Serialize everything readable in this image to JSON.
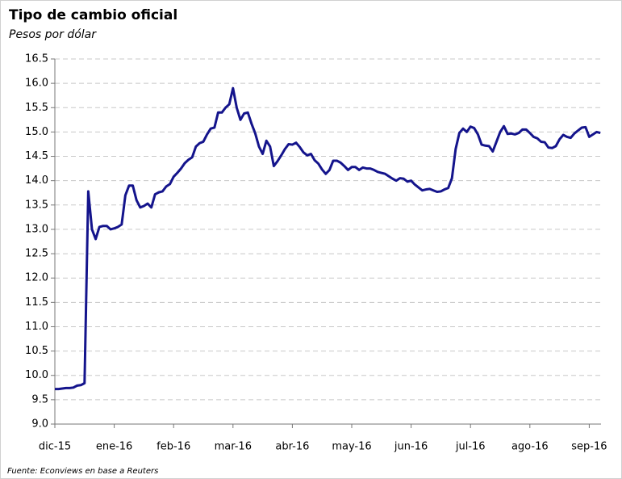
{
  "chart_data": {
    "type": "line",
    "title": "Tipo de cambio oficial",
    "subtitle": "Pesos por dólar",
    "source": "Fuente:  Econviews  en base a Reuters",
    "categories": [
      "dic-15",
      null,
      null,
      null,
      null,
      null,
      null,
      null,
      null,
      null,
      null,
      null,
      null,
      null,
      null,
      null,
      "ene-16",
      null,
      null,
      null,
      null,
      null,
      null,
      null,
      null,
      null,
      null,
      null,
      null,
      null,
      null,
      null,
      "feb-16",
      null,
      null,
      null,
      null,
      null,
      null,
      null,
      null,
      null,
      null,
      null,
      null,
      null,
      null,
      null,
      "mar-16",
      null,
      null,
      null,
      null,
      null,
      null,
      null,
      null,
      null,
      null,
      null,
      null,
      null,
      null,
      null,
      "abr-16",
      null,
      null,
      null,
      null,
      null,
      null,
      null,
      null,
      null,
      null,
      null,
      null,
      null,
      null,
      null,
      "may-16",
      null,
      null,
      null,
      null,
      null,
      null,
      null,
      null,
      null,
      null,
      null,
      null,
      null,
      null,
      null,
      "jun-16",
      null,
      null,
      null,
      null,
      null,
      null,
      null,
      null,
      null,
      null,
      null,
      null,
      null,
      null,
      null,
      "jul-16",
      null,
      null,
      null,
      null,
      null,
      null,
      null,
      null,
      null,
      null,
      null,
      null,
      null,
      null,
      null,
      "ago-16",
      null,
      null,
      null,
      null,
      null,
      null,
      null,
      null,
      null,
      null,
      null,
      null,
      null,
      null,
      null,
      "sep-16",
      null,
      null,
      null
    ],
    "values": [
      9.72,
      9.72,
      9.73,
      9.74,
      9.74,
      9.75,
      9.79,
      9.8,
      9.84,
      13.78,
      13.0,
      12.8,
      13.05,
      13.07,
      13.07,
      13.0,
      13.02,
      13.05,
      13.1,
      13.7,
      13.9,
      13.9,
      13.6,
      13.45,
      13.48,
      13.53,
      13.45,
      13.72,
      13.76,
      13.78,
      13.88,
      13.93,
      14.08,
      14.16,
      14.25,
      14.36,
      14.43,
      14.48,
      14.7,
      14.77,
      14.8,
      14.95,
      15.07,
      15.09,
      15.4,
      15.4,
      15.5,
      15.57,
      15.9,
      15.5,
      15.25,
      15.38,
      15.4,
      15.17,
      14.97,
      14.7,
      14.55,
      14.82,
      14.7,
      14.3,
      14.4,
      14.52,
      14.65,
      14.75,
      14.74,
      14.78,
      14.69,
      14.58,
      14.52,
      14.55,
      14.42,
      14.35,
      14.23,
      14.14,
      14.22,
      14.41,
      14.41,
      14.37,
      14.3,
      14.22,
      14.28,
      14.28,
      14.22,
      14.27,
      14.25,
      14.25,
      14.22,
      14.18,
      14.16,
      14.14,
      14.09,
      14.04,
      14.0,
      14.05,
      14.04,
      13.98,
      14.0,
      13.92,
      13.86,
      13.8,
      13.82,
      13.83,
      13.8,
      13.77,
      13.78,
      13.82,
      13.85,
      14.05,
      14.65,
      14.98,
      15.07,
      15.0,
      15.11,
      15.08,
      14.95,
      14.74,
      14.72,
      14.71,
      14.6,
      14.8,
      15.0,
      15.12,
      14.96,
      14.97,
      14.95,
      14.98,
      15.05,
      15.05,
      14.98,
      14.9,
      14.87,
      14.8,
      14.79,
      14.68,
      14.67,
      14.71,
      14.85,
      14.94,
      14.9,
      14.88,
      14.97,
      15.03,
      15.09,
      15.1,
      14.9,
      14.95,
      15.0,
      14.98
    ],
    "color": "#14148c",
    "ylim": [
      9,
      16.5
    ],
    "yticks": [
      {
        "value": 9,
        "label": "9.0"
      },
      9.5,
      {
        "value": 10,
        "label": "10.0"
      },
      10.5,
      {
        "value": 11,
        "label": "11.0"
      },
      11.5,
      {
        "value": 12,
        "label": "12.0"
      },
      12.5,
      {
        "value": 13,
        "label": "13.0"
      },
      13.5,
      {
        "value": 14,
        "label": "14.0"
      },
      14.5,
      {
        "value": 15,
        "label": "15.0"
      },
      15.5,
      {
        "value": 16,
        "label": "16.0"
      },
      16.5
    ],
    "grid": true
  }
}
